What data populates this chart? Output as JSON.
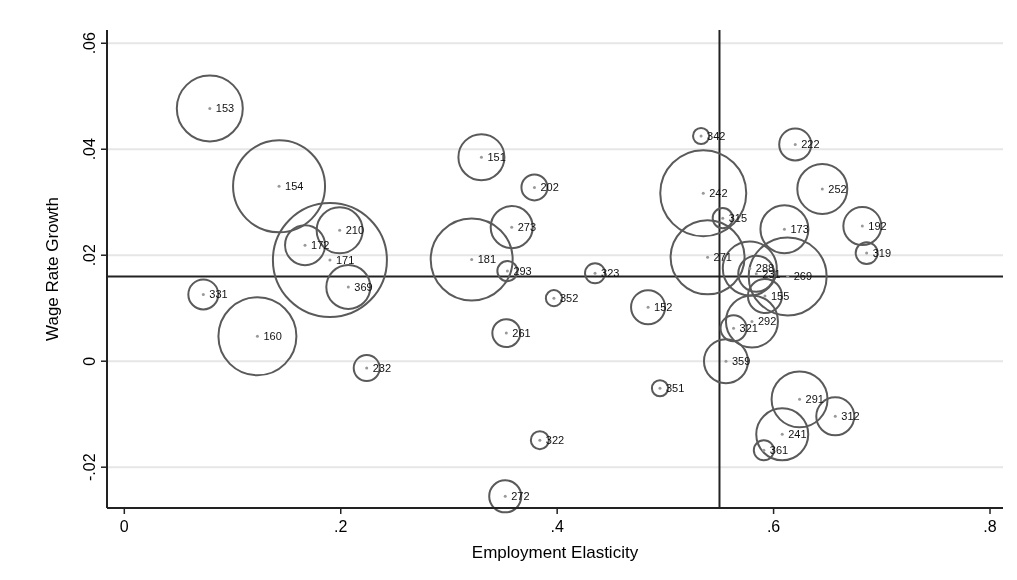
{
  "chart_data": {
    "type": "bubble",
    "xlabel": "Employment Elasticity",
    "ylabel": "Wage Rate Growth",
    "x": [
      0.079,
      0.143,
      0.199,
      0.167,
      0.19,
      0.207,
      0.073,
      0.123,
      0.224,
      0.33,
      0.379,
      0.358,
      0.321,
      0.354,
      0.435,
      0.397,
      0.484,
      0.353,
      0.495,
      0.384,
      0.352,
      0.533,
      0.62,
      0.535,
      0.645,
      0.553,
      0.61,
      0.682,
      0.686,
      0.539,
      0.578,
      0.584,
      0.613,
      0.592,
      0.58,
      0.563,
      0.556,
      0.624,
      0.657,
      0.608,
      0.591
    ],
    "values": [
      0.0477,
      0.033,
      0.0247,
      0.0219,
      0.0191,
      0.014,
      0.0126,
      0.0047,
      -0.0013,
      0.0385,
      0.0328,
      0.0253,
      0.0192,
      0.017,
      0.0166,
      0.0119,
      0.0102,
      0.0053,
      -0.0051,
      -0.0149,
      -0.0255,
      0.0425,
      0.0409,
      0.0317,
      0.0325,
      0.027,
      0.0249,
      0.0255,
      0.0204,
      0.0196,
      0.0175,
      0.0165,
      0.016,
      0.0123,
      0.0075,
      0.0062,
      0.0,
      -0.0072,
      -0.0104,
      -0.0138,
      -0.0168
    ],
    "sizes": [
      0.335,
      0.651,
      0.163,
      0.123,
      1,
      0.149,
      0.069,
      0.468,
      0.052,
      0.163,
      0.052,
      0.136,
      0.517,
      0.031,
      0.031,
      0.02,
      0.089,
      0.06,
      0.02,
      0.025,
      0.079,
      0.02,
      0.079,
      0.569,
      0.192,
      0.031,
      0.177,
      0.111,
      0.037,
      0.421,
      0.224,
      0.1,
      0.468,
      0.089,
      0.208,
      0.052,
      0.149,
      0.241,
      0.111,
      0.208,
      0.031
    ],
    "color": "#5a5a5a",
    "marker": "circle",
    "annotations": [
      {
        "text": "153",
        "x": 0.079,
        "y": 0.0477
      },
      {
        "text": "154",
        "x": 0.143,
        "y": 0.033
      },
      {
        "text": "210",
        "x": 0.199,
        "y": 0.0247
      },
      {
        "text": "172",
        "x": 0.167,
        "y": 0.0219
      },
      {
        "text": "171",
        "x": 0.19,
        "y": 0.0191
      },
      {
        "text": "369",
        "x": 0.207,
        "y": 0.014
      },
      {
        "text": "331",
        "x": 0.073,
        "y": 0.0126
      },
      {
        "text": "160",
        "x": 0.123,
        "y": 0.0047
      },
      {
        "text": "232",
        "x": 0.224,
        "y": -0.0013
      },
      {
        "text": "151",
        "x": 0.33,
        "y": 0.0385
      },
      {
        "text": "202",
        "x": 0.379,
        "y": 0.0328
      },
      {
        "text": "273",
        "x": 0.358,
        "y": 0.0253
      },
      {
        "text": "181",
        "x": 0.321,
        "y": 0.0192
      },
      {
        "text": "293",
        "x": 0.354,
        "y": 0.017
      },
      {
        "text": "323",
        "x": 0.435,
        "y": 0.0166
      },
      {
        "text": "352",
        "x": 0.397,
        "y": 0.0119
      },
      {
        "text": "152",
        "x": 0.484,
        "y": 0.0102
      },
      {
        "text": "261",
        "x": 0.353,
        "y": 0.0053
      },
      {
        "text": "351",
        "x": 0.495,
        "y": -0.0051
      },
      {
        "text": "322",
        "x": 0.384,
        "y": -0.0149
      },
      {
        "text": "272",
        "x": 0.352,
        "y": -0.0255
      },
      {
        "text": "342",
        "x": 0.533,
        "y": 0.0425
      },
      {
        "text": "222",
        "x": 0.62,
        "y": 0.0409
      },
      {
        "text": "242",
        "x": 0.535,
        "y": 0.0317
      },
      {
        "text": "252",
        "x": 0.645,
        "y": 0.0325
      },
      {
        "text": "315",
        "x": 0.553,
        "y": 0.027
      },
      {
        "text": "173",
        "x": 0.61,
        "y": 0.0249
      },
      {
        "text": "192",
        "x": 0.682,
        "y": 0.0255
      },
      {
        "text": "319",
        "x": 0.686,
        "y": 0.0204
      },
      {
        "text": "271",
        "x": 0.539,
        "y": 0.0196
      },
      {
        "text": "288",
        "x": 0.578,
        "y": 0.0175
      },
      {
        "text": "231",
        "x": 0.584,
        "y": 0.0165
      },
      {
        "text": "269",
        "x": 0.613,
        "y": 0.016
      },
      {
        "text": "155",
        "x": 0.592,
        "y": 0.0123
      },
      {
        "text": "292",
        "x": 0.58,
        "y": 0.0075
      },
      {
        "text": "321",
        "x": 0.563,
        "y": 0.0062
      },
      {
        "text": "359",
        "x": 0.556,
        "y": 0.0
      },
      {
        "text": "291",
        "x": 0.624,
        "y": -0.0072
      },
      {
        "text": "312",
        "x": 0.657,
        "y": -0.0104
      },
      {
        "text": "241",
        "x": 0.608,
        "y": -0.0138
      },
      {
        "text": "361",
        "x": 0.591,
        "y": -0.0168
      }
    ],
    "ref_lines": [
      {
        "axis": "x",
        "value": 0.55,
        "color": "#222222"
      },
      {
        "axis": "y",
        "value": 0.016,
        "color": "#222222"
      }
    ],
    "xlim": [
      -0.016,
      0.812
    ],
    "ylim": [
      -0.0277,
      0.0625
    ],
    "xticks": [
      0,
      {
        "value": 0.2,
        "label": ".2"
      },
      {
        "value": 0.4,
        "label": ".4"
      },
      {
        "value": 0.6,
        "label": ".6"
      },
      {
        "value": 0.8,
        "label": ".8"
      }
    ],
    "yticks": [
      {
        "value": -0.02,
        "label": "-.02"
      },
      0,
      {
        "value": 0.02,
        "label": ".02"
      },
      {
        "value": 0.04,
        "label": ".04"
      },
      {
        "value": 0.06,
        "label": ".06"
      }
    ],
    "grid": "y"
  }
}
